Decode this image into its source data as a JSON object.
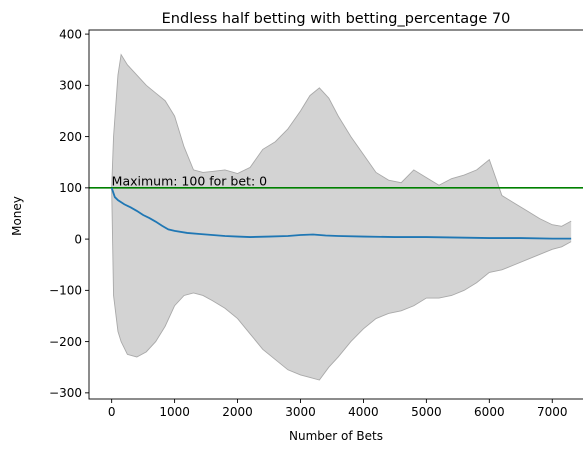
{
  "chart_data": {
    "type": "line",
    "title": "Endless half betting with betting_percentage 70",
    "xlabel": "Number of Bets",
    "ylabel": "Money",
    "xlim": [
      -360,
      7520
    ],
    "ylim": [
      -312,
      408
    ],
    "xticks": [
      0,
      1000,
      2000,
      3000,
      4000,
      5000,
      6000,
      7000
    ],
    "yticks": [
      -300,
      -200,
      -100,
      0,
      100,
      200,
      300,
      400
    ],
    "grid": false,
    "legend": "none",
    "colors": {
      "mean_line": "#1f77b4",
      "band_fill": "#d3d3d3",
      "band_edge": "#a9a9a9",
      "max_line": "#008000"
    },
    "annotation": "Maximum: 100 for bet: 0",
    "max_line_y": 100,
    "series": [
      {
        "type": "line",
        "x": [
          0,
          50,
          100,
          200,
          300,
          400,
          500,
          600,
          700,
          800,
          900,
          1000,
          1200,
          1400,
          1600,
          1800,
          2000,
          2200,
          2500,
          2800,
          3000,
          3200,
          3400,
          3600,
          4000,
          4500,
          5000,
          5500,
          6000,
          6500,
          7000,
          7300
        ],
        "y": [
          100,
          82,
          76,
          68,
          62,
          55,
          47,
          41,
          34,
          26,
          19,
          16,
          12,
          10,
          8,
          6,
          5,
          4,
          5,
          6,
          8,
          9,
          7,
          6,
          5,
          4,
          4,
          3,
          2,
          2,
          1,
          1
        ]
      },
      {
        "type": "band",
        "x": [
          0,
          30,
          100,
          150,
          250,
          400,
          550,
          700,
          850,
          1000,
          1150,
          1300,
          1450,
          1600,
          1800,
          2000,
          2200,
          2400,
          2600,
          2800,
          3000,
          3150,
          3300,
          3450,
          3600,
          3800,
          4000,
          4200,
          4400,
          4600,
          4800,
          5000,
          5200,
          5400,
          5600,
          5800,
          6000,
          6200,
          6400,
          6600,
          6800,
          7000,
          7150,
          7300
        ],
        "upper": [
          100,
          200,
          320,
          360,
          340,
          320,
          300,
          285,
          270,
          240,
          180,
          135,
          130,
          132,
          135,
          128,
          140,
          175,
          190,
          215,
          250,
          280,
          295,
          275,
          240,
          200,
          165,
          130,
          115,
          110,
          135,
          120,
          105,
          118,
          125,
          135,
          155,
          85,
          70,
          55,
          40,
          28,
          25,
          35
        ],
        "lower": [
          100,
          -110,
          -180,
          -200,
          -225,
          -230,
          -220,
          -200,
          -170,
          -130,
          -110,
          -105,
          -110,
          -120,
          -135,
          -155,
          -185,
          -215,
          -235,
          -255,
          -265,
          -270,
          -275,
          -250,
          -230,
          -200,
          -175,
          -155,
          -145,
          -140,
          -130,
          -115,
          -115,
          -110,
          -100,
          -85,
          -65,
          -60,
          -50,
          -40,
          -30,
          -20,
          -15,
          -5
        ]
      }
    ]
  }
}
